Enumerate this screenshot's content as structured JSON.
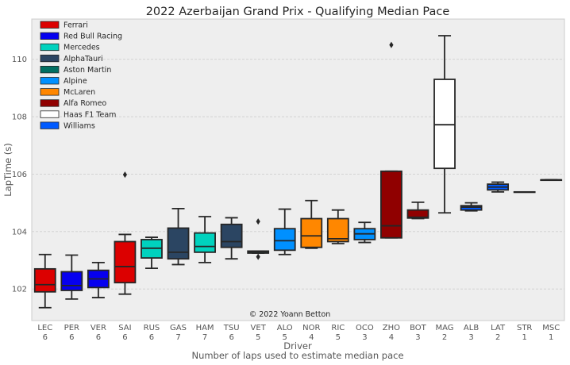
{
  "chart_data": {
    "type": "boxplot",
    "title": "2022 Azerbaijan Grand Prix - Qualifying Median Pace",
    "xlabel": "Driver",
    "xlabel2": "Number of laps used to estimate median pace",
    "ylabel": "LapTime (s)",
    "ylim": [
      100.9,
      111.4
    ],
    "yticks": [
      102,
      104,
      106,
      108,
      110
    ],
    "grid": true,
    "legend_position": "top-left",
    "credit": "© 2022 Yoann Betton",
    "teams": [
      {
        "name": "Ferrari",
        "color": "#dc0000"
      },
      {
        "name": "Red Bull Racing",
        "color": "#0600ef"
      },
      {
        "name": "Mercedes",
        "color": "#00d2be"
      },
      {
        "name": "AlphaTauri",
        "color": "#2b4562"
      },
      {
        "name": "Aston Martin",
        "color": "#006f62"
      },
      {
        "name": "Alpine",
        "color": "#0090ff"
      },
      {
        "name": "McLaren",
        "color": "#ff8700"
      },
      {
        "name": "Alfa Romeo",
        "color": "#900000"
      },
      {
        "name": "Haas F1 Team",
        "color": "#ffffff"
      },
      {
        "name": "Williams",
        "color": "#005aff"
      }
    ],
    "drivers": [
      {
        "driver": "LEC",
        "laps": "6",
        "color": "#dc0000",
        "whislo": 101.35,
        "q1": 101.9,
        "med": 102.15,
        "q3": 102.7,
        "whishi": 103.2,
        "fliers": []
      },
      {
        "driver": "PER",
        "laps": "6",
        "color": "#0600ef",
        "whislo": 101.65,
        "q1": 101.95,
        "med": 102.12,
        "q3": 102.6,
        "whishi": 103.18,
        "fliers": []
      },
      {
        "driver": "VER",
        "laps": "6",
        "color": "#0600ef",
        "whislo": 101.7,
        "q1": 102.05,
        "med": 102.35,
        "q3": 102.65,
        "whishi": 102.92,
        "fliers": []
      },
      {
        "driver": "SAI",
        "laps": "6",
        "color": "#dc0000",
        "whislo": 101.82,
        "q1": 102.22,
        "med": 102.78,
        "q3": 103.65,
        "whishi": 103.9,
        "fliers": [
          105.98
        ]
      },
      {
        "driver": "RUS",
        "laps": "6",
        "color": "#00d2be",
        "whislo": 102.72,
        "q1": 103.08,
        "med": 103.42,
        "q3": 103.72,
        "whishi": 103.8,
        "fliers": []
      },
      {
        "driver": "GAS",
        "laps": "7",
        "color": "#2b4562",
        "whislo": 102.85,
        "q1": 103.05,
        "med": 103.28,
        "q3": 104.12,
        "whishi": 104.8,
        "fliers": []
      },
      {
        "driver": "HAM",
        "laps": "7",
        "color": "#00d2be",
        "whislo": 102.92,
        "q1": 103.28,
        "med": 103.48,
        "q3": 103.95,
        "whishi": 104.52,
        "fliers": []
      },
      {
        "driver": "TSU",
        "laps": "6",
        "color": "#2b4562",
        "whislo": 103.05,
        "q1": 103.45,
        "med": 103.65,
        "q3": 104.25,
        "whishi": 104.48,
        "fliers": []
      },
      {
        "driver": "VET",
        "laps": "5",
        "color": "#006f62",
        "whislo": 103.25,
        "q1": 103.25,
        "med": 103.3,
        "q3": 103.32,
        "whishi": 103.32,
        "fliers": [
          103.12,
          104.35
        ]
      },
      {
        "driver": "ALO",
        "laps": "5",
        "color": "#0090ff",
        "whislo": 103.2,
        "q1": 103.35,
        "med": 103.68,
        "q3": 104.1,
        "whishi": 104.78,
        "fliers": []
      },
      {
        "driver": "NOR",
        "laps": "4",
        "color": "#ff8700",
        "whislo": 103.42,
        "q1": 103.45,
        "med": 103.85,
        "q3": 104.45,
        "whishi": 105.08,
        "fliers": []
      },
      {
        "driver": "RIC",
        "laps": "5",
        "color": "#ff8700",
        "whislo": 103.58,
        "q1": 103.65,
        "med": 103.75,
        "q3": 104.45,
        "whishi": 104.75,
        "fliers": []
      },
      {
        "driver": "OCO",
        "laps": "3",
        "color": "#0090ff",
        "whislo": 103.62,
        "q1": 103.72,
        "med": 103.92,
        "q3": 104.1,
        "whishi": 104.32,
        "fliers": []
      },
      {
        "driver": "ZHO",
        "laps": "4",
        "color": "#900000",
        "whislo": 103.78,
        "q1": 103.78,
        "med": 104.2,
        "q3": 106.1,
        "whishi": 106.1,
        "fliers": [
          110.5
        ]
      },
      {
        "driver": "BOT",
        "laps": "3",
        "color": "#900000",
        "whislo": 104.45,
        "q1": 104.47,
        "med": 104.5,
        "q3": 104.75,
        "whishi": 105.02,
        "fliers": []
      },
      {
        "driver": "MAG",
        "laps": "2",
        "color": "#ffffff",
        "whislo": 104.65,
        "q1": 106.2,
        "med": 107.72,
        "q3": 109.3,
        "whishi": 110.82,
        "fliers": []
      },
      {
        "driver": "ALB",
        "laps": "3",
        "color": "#005aff",
        "whislo": 104.72,
        "q1": 104.75,
        "med": 104.85,
        "q3": 104.9,
        "whishi": 105.0,
        "fliers": []
      },
      {
        "driver": "LAT",
        "laps": "2",
        "color": "#005aff",
        "whislo": 105.38,
        "q1": 105.45,
        "med": 105.55,
        "q3": 105.65,
        "whishi": 105.72,
        "fliers": []
      },
      {
        "driver": "STR",
        "laps": "1",
        "color": "#006f62",
        "whislo": 105.38,
        "q1": 105.38,
        "med": 105.38,
        "q3": 105.38,
        "whishi": 105.38,
        "fliers": []
      },
      {
        "driver": "MSC",
        "laps": "1",
        "color": "#ffffff",
        "whislo": 105.8,
        "q1": 105.8,
        "med": 105.8,
        "q3": 105.8,
        "whishi": 105.8,
        "fliers": []
      }
    ]
  }
}
